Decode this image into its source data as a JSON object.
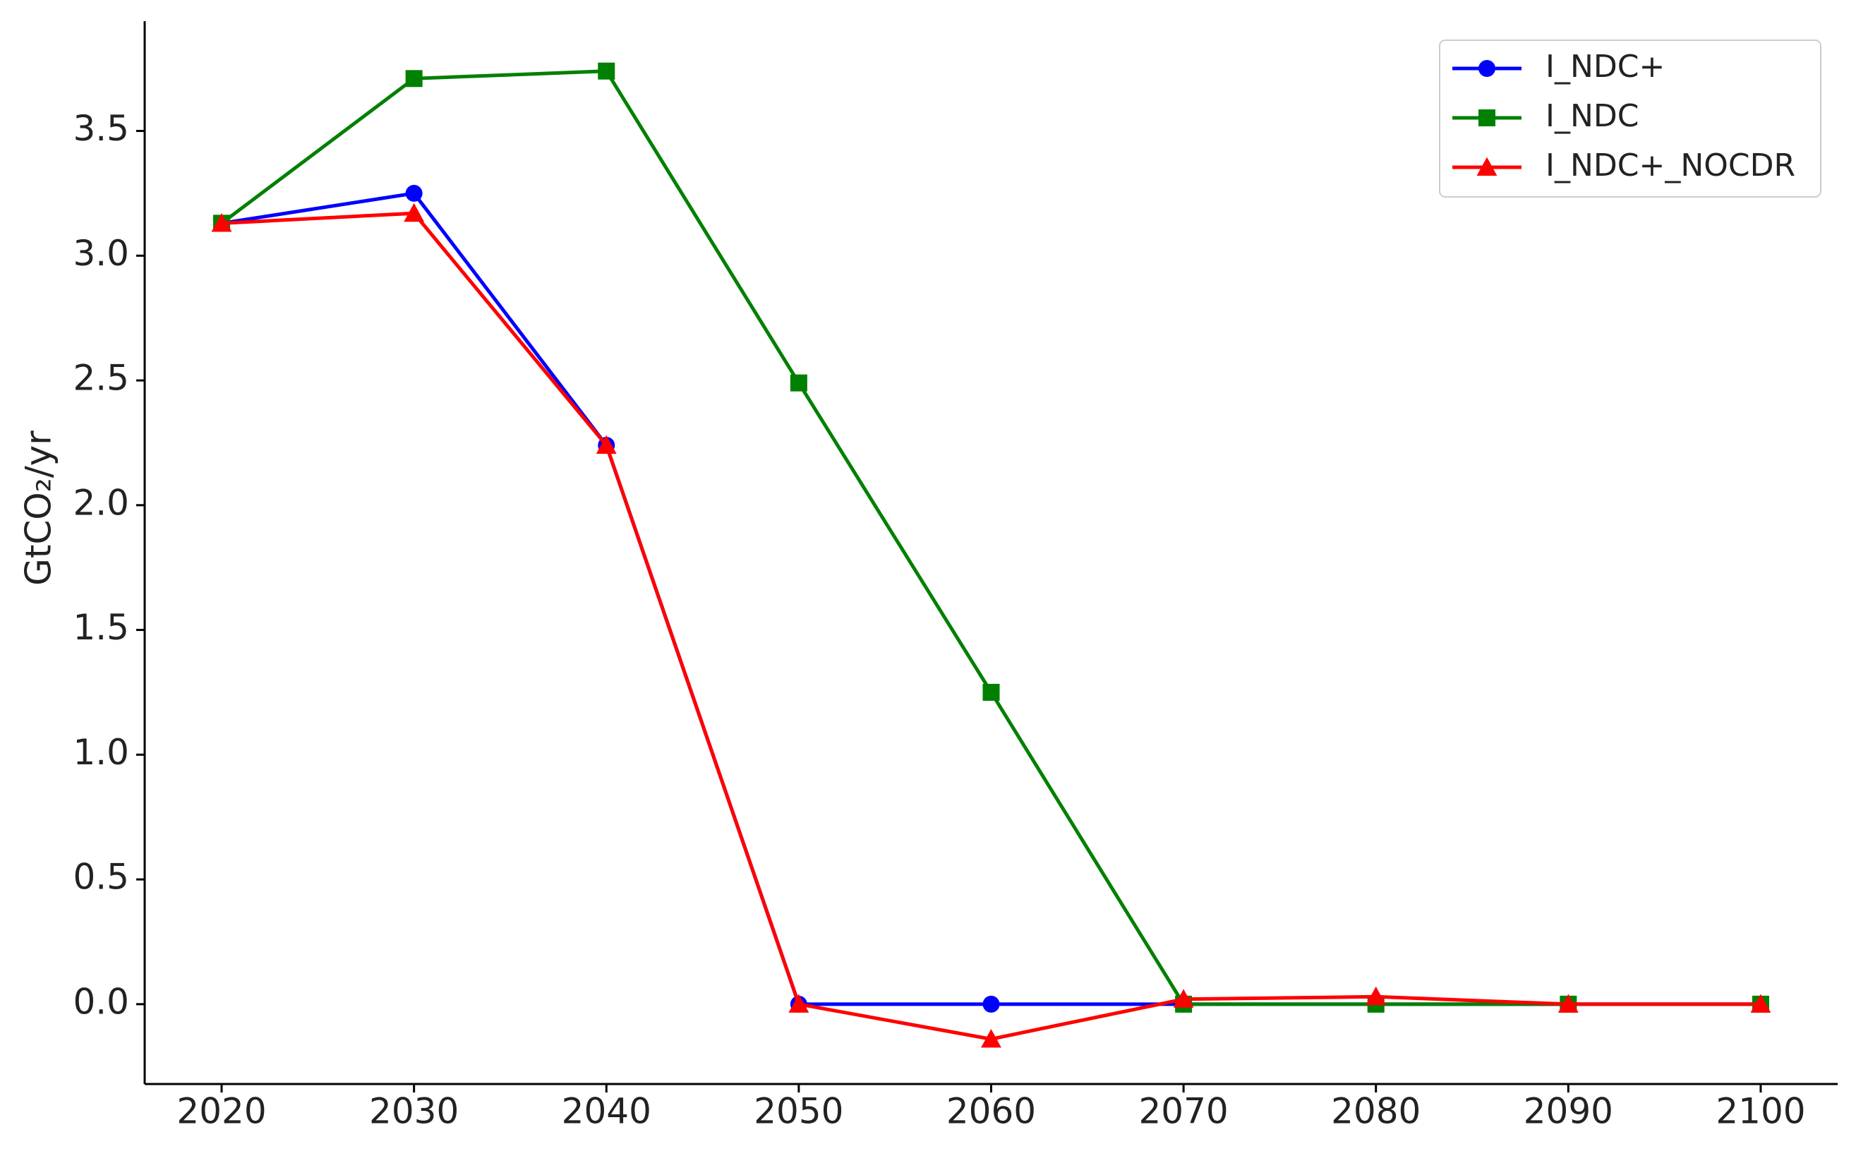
{
  "chart_data": {
    "type": "line",
    "ylabel": "GtCO₂/yr",
    "x": [
      2020,
      2030,
      2040,
      2050,
      2060,
      2070,
      2080,
      2090,
      2100
    ],
    "series": [
      {
        "name": "I_NDC+",
        "color": "#0000ff",
        "marker": "circle",
        "values": [
          3.13,
          3.25,
          2.24,
          0,
          0,
          0,
          0,
          0,
          0
        ]
      },
      {
        "name": "I_NDC",
        "color": "#008000",
        "marker": "square",
        "values": [
          3.13,
          3.71,
          3.74,
          2.49,
          1.25,
          0,
          0,
          0,
          0
        ]
      },
      {
        "name": "I_NDC+_NOCDR",
        "color": "#ff0000",
        "marker": "triangle",
        "values": [
          3.13,
          3.17,
          2.24,
          0,
          -0.14,
          0.02,
          0.03,
          0,
          0
        ]
      }
    ],
    "xlim": [
      2016,
      2104
    ],
    "ylim": [
      -0.32,
      3.94
    ],
    "xticks": [
      2020,
      2030,
      2040,
      2050,
      2060,
      2070,
      2080,
      2090,
      2100
    ],
    "yticks": [
      {
        "value": 0,
        "label": "0.0"
      },
      0.5,
      {
        "value": 1,
        "label": "1.0"
      },
      1.5,
      {
        "value": 2,
        "label": "2.0"
      },
      2.5,
      {
        "value": 3,
        "label": "3.0"
      },
      3.5
    ],
    "legend": "upper right"
  }
}
